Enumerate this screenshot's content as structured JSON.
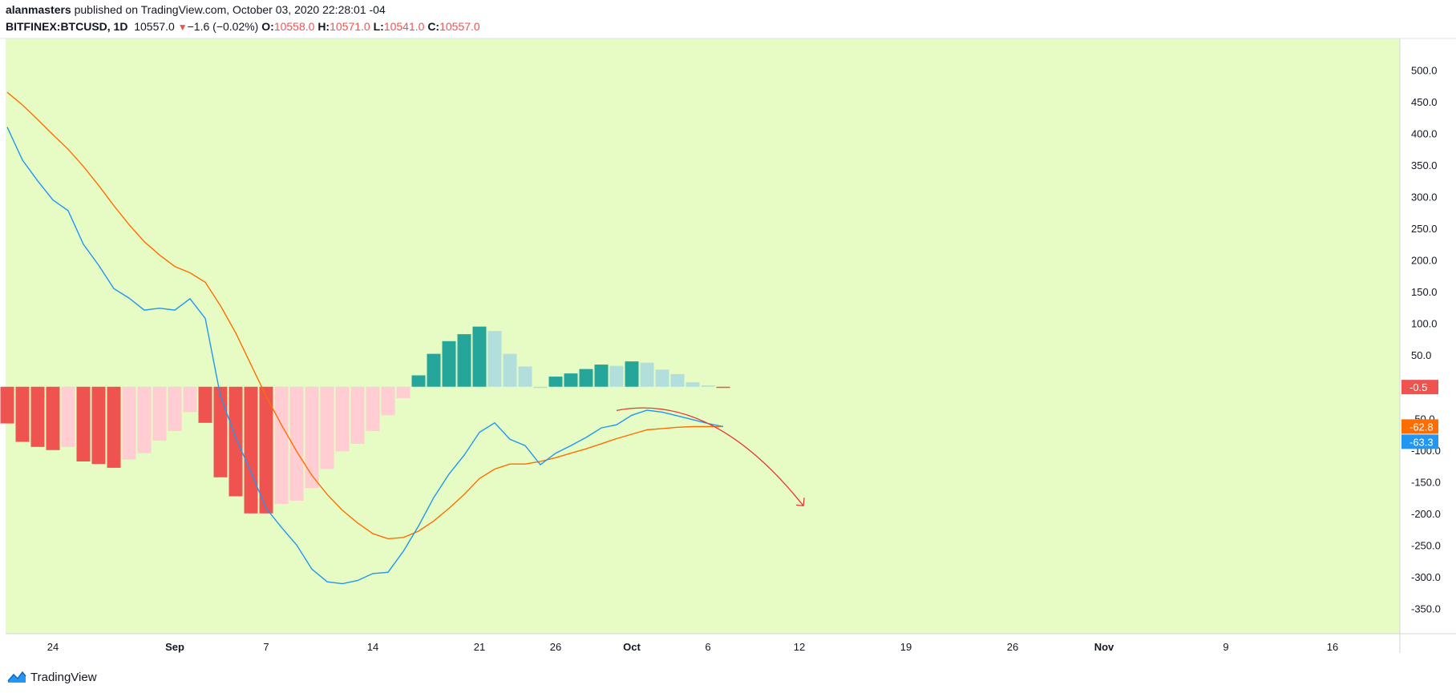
{
  "header": {
    "author": "alanmasters",
    "published_text": "published on TradingView.com, October 03, 2020 22:28:01 -04",
    "symbol": "BITFINEX:BTCUSD, 1D",
    "last": "10557.0",
    "change": "−1.6 (−0.02%)",
    "o_label": "O:",
    "o_value": "10558.0",
    "h_label": "H:",
    "h_value": "10571.0",
    "l_label": "L:",
    "l_value": "10541.0",
    "c_label": "C:",
    "c_value": "10557.0"
  },
  "footer": {
    "brand": "TradingView"
  },
  "colors": {
    "background": "#e6fcc4",
    "macd_line": "#2196f3",
    "signal_line": "#ff6d00",
    "hist_pos_strong": "#26a69a",
    "hist_pos_weak": "#b2dfdb",
    "hist_neg_strong": "#ef5350",
    "hist_neg_weak": "#ffcdd2",
    "arrow": "#e53935"
  },
  "chart_data": {
    "type": "line",
    "ylim": [
      -390,
      550
    ],
    "y_ticks": [
      500,
      450,
      400,
      350,
      300,
      250,
      200,
      150,
      100,
      50,
      -50,
      -100,
      -150,
      -200,
      -250,
      -300,
      -350
    ],
    "x_tick_labels": [
      {
        "label": "24",
        "day": 3,
        "bold": false
      },
      {
        "label": "Sep",
        "day": 11,
        "bold": true
      },
      {
        "label": "7",
        "day": 17,
        "bold": false
      },
      {
        "label": "14",
        "day": 24,
        "bold": false
      },
      {
        "label": "21",
        "day": 31,
        "bold": false
      },
      {
        "label": "26",
        "day": 36,
        "bold": false
      },
      {
        "label": "Oct",
        "day": 41,
        "bold": true
      },
      {
        "label": "6",
        "day": 46,
        "bold": false
      },
      {
        "label": "12",
        "day": 52,
        "bold": false
      },
      {
        "label": "19",
        "day": 59,
        "bold": false
      },
      {
        "label": "26",
        "day": 66,
        "bold": false
      },
      {
        "label": "Nov",
        "day": 72,
        "bold": true
      },
      {
        "label": "9",
        "day": 80,
        "bold": false
      },
      {
        "label": "16",
        "day": 87,
        "bold": false
      }
    ],
    "macd": [
      410,
      358,
      325,
      295,
      278,
      225,
      192,
      155,
      140,
      121,
      124,
      121,
      139,
      108,
      -15,
      -80,
      -135,
      -192,
      -222,
      -250,
      -288,
      -308,
      -311,
      -306,
      -295,
      -293,
      -260,
      -220,
      -175,
      -138,
      -108,
      -72,
      -57,
      -83,
      -93,
      -123,
      -105,
      -93,
      -80,
      -65,
      -60,
      -45,
      -37,
      -40,
      -46,
      -52,
      -58,
      -63
    ],
    "signal": [
      465,
      445,
      422,
      398,
      375,
      348,
      318,
      286,
      256,
      229,
      208,
      190,
      180,
      165,
      128,
      85,
      35,
      -15,
      -60,
      -102,
      -140,
      -170,
      -195,
      -215,
      -232,
      -240,
      -238,
      -228,
      -212,
      -192,
      -170,
      -145,
      -130,
      -122,
      -122,
      -118,
      -112,
      -105,
      -98,
      -90,
      -82,
      -75,
      -68,
      -66,
      -64,
      -63,
      -63,
      -62.8
    ],
    "histogram": [
      -58,
      -87,
      -95,
      -100,
      -95,
      -118,
      -122,
      -128,
      -115,
      -105,
      -85,
      -70,
      -40,
      -57,
      -143,
      -173,
      -200,
      -200,
      -185,
      -180,
      -160,
      -130,
      -102,
      -90,
      -70,
      -45,
      -18,
      18,
      52,
      72,
      83,
      95,
      88,
      52,
      32,
      0,
      16,
      21,
      28,
      35,
      33,
      40,
      38,
      27,
      20,
      7,
      2,
      -0.5
    ],
    "labels": [
      {
        "text": "-0.5",
        "value": -0.5,
        "color": "#ef5350"
      },
      {
        "text": "-62.8",
        "value": -62.8,
        "color": "#ff6d00"
      },
      {
        "text": "-63.3",
        "value": -63.3,
        "color": "#2196f3"
      }
    ]
  }
}
